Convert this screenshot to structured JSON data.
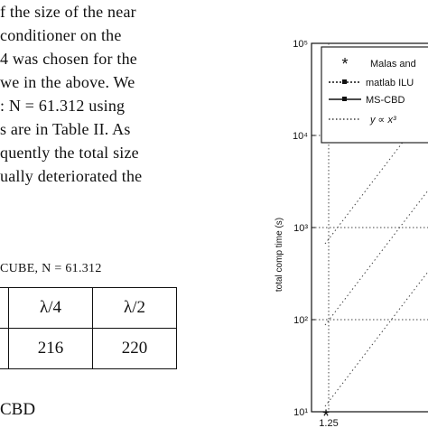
{
  "paper": {
    "body_lines": [
      "f the size of the near",
      "conditioner   on   the",
      "4 was chosen for the",
      "we in the above. We",
      ": N  =  61.312  using",
      "s are in Table II. As",
      "quently the total size",
      "ually deteriorated the"
    ],
    "caption": {
      "prefix": "C",
      "smallcaps": "UBE",
      "suffix": ", N = 61.312"
    },
    "table": {
      "header": [
        "",
        "λ/4",
        "λ/2"
      ],
      "row": [
        "",
        "216",
        "220"
      ]
    },
    "bottom_fragment": "CBD"
  },
  "figure": {
    "ylabel": "total comp time (s)",
    "legend": [
      "Malas and",
      "matlab ILU",
      "MS-CBD",
      "y ∝ x³"
    ],
    "colors": {
      "ink": "#111111",
      "grid": "#444444"
    }
  },
  "chart_data": {
    "type": "line",
    "yscale": "log",
    "ylim": [
      10,
      100000
    ],
    "y_ticks": [
      "10¹",
      "10²",
      "10³",
      "10⁴",
      "10⁵"
    ],
    "x_ticks": [
      "1.25"
    ],
    "ylabel": "total comp time (s)",
    "series": [
      {
        "name": "Malas and",
        "marker": "*",
        "x": [
          1.25
        ],
        "y": [
          9.5
        ]
      }
    ],
    "legend_position": "top-right"
  }
}
